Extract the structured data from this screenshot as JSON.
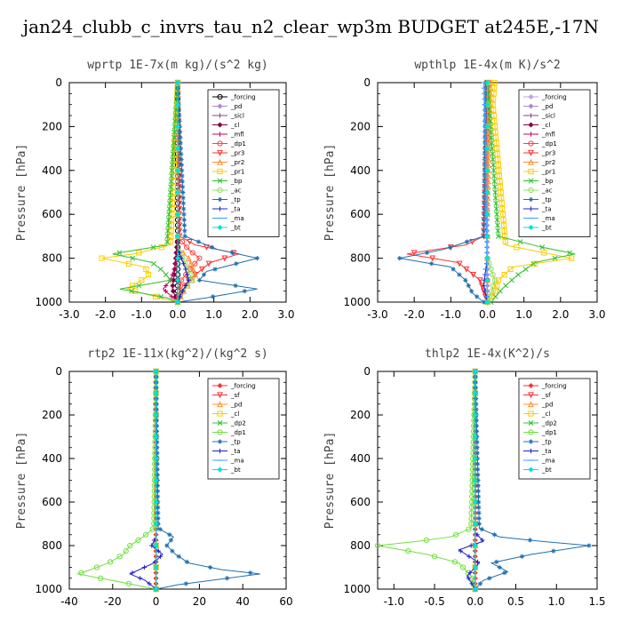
{
  "figure": {
    "title": "jan24_clubb_c_invrs_tau_n2_clear_wp3m  BUDGET at245E,-17N"
  },
  "chart_data": [
    {
      "type": "line",
      "title": "wprtp  1E-7x(m kg)/(s^2 kg)",
      "ylabel": "Pressure [hPa]",
      "xlim": [
        -3.0,
        3.0
      ],
      "ylim": [
        1000,
        0
      ],
      "xticks": [
        "-3.0",
        "-2.0",
        "-1.0",
        "0.0",
        "1.0",
        "2.0",
        "3.0"
      ],
      "yticks": [
        "0",
        "200",
        "400",
        "600",
        "800",
        "1000"
      ],
      "legend_position": "top-right",
      "series": [
        {
          "name": "_forcing",
          "color": "#000000",
          "marker": "circle",
          "x": [
            0,
            0,
            0
          ],
          "y": [
            0,
            500,
            1000
          ]
        },
        {
          "name": "_pd",
          "color": "#b088d0",
          "marker": "diamond",
          "x": [
            0,
            0,
            0
          ],
          "y": [
            0,
            500,
            1000
          ]
        },
        {
          "name": "_sicl",
          "color": "#8040a0",
          "marker": "plus",
          "x": [
            0,
            0,
            0
          ],
          "y": [
            0,
            500,
            1000
          ]
        },
        {
          "name": "_cl",
          "color": "#800040",
          "marker": "diamond",
          "x": [
            0,
            0,
            -0.1,
            -0.15,
            0
          ],
          "y": [
            0,
            700,
            880,
            940,
            1000
          ]
        },
        {
          "name": "_mfl",
          "color": "#c00060",
          "marker": "plus",
          "x": [
            0,
            0,
            -0.2,
            -0.4,
            0
          ],
          "y": [
            0,
            800,
            900,
            940,
            1000
          ]
        },
        {
          "name": "_dp1",
          "color": "#ff4040",
          "marker": "circle",
          "x": [
            0,
            0,
            0.3,
            0.6,
            0.1,
            0
          ],
          "y": [
            0,
            700,
            760,
            800,
            900,
            1000
          ]
        },
        {
          "name": "_pr3",
          "color": "#ff3030",
          "marker": "triangle-down",
          "x": [
            0,
            0.05,
            0.5,
            1.7,
            0.9,
            0.3,
            0
          ],
          "y": [
            0,
            700,
            740,
            780,
            820,
            900,
            1000
          ]
        },
        {
          "name": "_pr2",
          "color": "#ff9030",
          "marker": "triangle",
          "x": [
            0,
            0,
            0.3,
            0.5,
            0.2,
            0
          ],
          "y": [
            0,
            750,
            800,
            880,
            940,
            1000
          ]
        },
        {
          "name": "_pr1",
          "color": "#ffcc00",
          "marker": "square",
          "x": [
            0,
            -0.2,
            -1.2,
            -2.1,
            -0.9,
            -0.8,
            -1.4,
            -0.5,
            0
          ],
          "y": [
            0,
            740,
            780,
            800,
            840,
            880,
            940,
            980,
            1000
          ]
        },
        {
          "name": "_bp",
          "color": "#30c030",
          "marker": "cross",
          "x": [
            0,
            -0.3,
            -1.8,
            -0.7,
            -0.4,
            -0.2,
            -1.6,
            -0.3,
            0
          ],
          "y": [
            0,
            740,
            780,
            820,
            860,
            900,
            940,
            980,
            1000
          ]
        },
        {
          "name": "_ac",
          "color": "#90e060",
          "marker": "circle",
          "x": [
            0,
            0,
            0.2,
            0.4,
            0.1,
            0
          ],
          "y": [
            0,
            760,
            820,
            900,
            960,
            1000
          ]
        },
        {
          "name": "_tp",
          "color": "#2070b0",
          "marker": "star",
          "x": [
            0,
            0.2,
            1.1,
            2.2,
            0.8,
            0.6,
            2.2,
            0.8,
            0
          ],
          "y": [
            0,
            700,
            760,
            800,
            860,
            900,
            940,
            980,
            1000
          ]
        },
        {
          "name": "_ta",
          "color": "#2020c0",
          "marker": "plus",
          "x": [
            0,
            0,
            0.2,
            0.3,
            0.1,
            0
          ],
          "y": [
            0,
            760,
            840,
            900,
            960,
            1000
          ]
        },
        {
          "name": "_ma",
          "color": "#40a0ff",
          "marker": "dash",
          "x": [
            0,
            0,
            0
          ],
          "y": [
            0,
            500,
            1000
          ]
        },
        {
          "name": "_bt",
          "color": "#00e0e0",
          "marker": "diamond",
          "x": [
            0,
            0,
            0
          ],
          "y": [
            0,
            500,
            1000
          ]
        }
      ]
    },
    {
      "type": "line",
      "title": "wpthlp  1E-4x(m K)/s^2",
      "ylabel": "Pressure [hPa]",
      "xlim": [
        -3.0,
        3.0
      ],
      "ylim": [
        1000,
        0
      ],
      "xticks": [
        "-3.0",
        "-2.0",
        "-1.0",
        "0.0",
        "1.0",
        "2.0",
        "3.0"
      ],
      "yticks": [
        "0",
        "200",
        "400",
        "600",
        "800",
        "1000"
      ],
      "legend_position": "top-right",
      "series": [
        {
          "name": "_forcing",
          "color": "#c0a0e0",
          "marker": "diamond",
          "x": [
            0,
            0,
            0
          ],
          "y": [
            0,
            500,
            1000
          ]
        },
        {
          "name": "_pd",
          "color": "#b088d0",
          "marker": "diamond",
          "x": [
            0,
            0,
            0
          ],
          "y": [
            0,
            500,
            1000
          ]
        },
        {
          "name": "_sicl",
          "color": "#8040a0",
          "marker": "plus",
          "x": [
            0,
            0,
            0
          ],
          "y": [
            0,
            500,
            1000
          ]
        },
        {
          "name": "_cl",
          "color": "#800040",
          "marker": "diamond",
          "x": [
            0,
            0,
            0
          ],
          "y": [
            0,
            500,
            1000
          ]
        },
        {
          "name": "_mfl",
          "color": "#c00060",
          "marker": "plus",
          "x": [
            0,
            0,
            0
          ],
          "y": [
            0,
            500,
            1000
          ]
        },
        {
          "name": "_dp1",
          "color": "#ff4040",
          "marker": "circle",
          "x": [
            0,
            0,
            0
          ],
          "y": [
            0,
            500,
            1000
          ]
        },
        {
          "name": "_pr3",
          "color": "#ff3030",
          "marker": "triangle-down",
          "x": [
            0,
            -0.1,
            -0.6,
            -2.2,
            -0.8,
            -0.2,
            0
          ],
          "y": [
            0,
            700,
            740,
            780,
            820,
            900,
            1000
          ]
        },
        {
          "name": "_pr2",
          "color": "#ff9030",
          "marker": "triangle",
          "x": [
            0.1,
            0.05,
            0,
            0
          ],
          "y": [
            0,
            200,
            600,
            1000
          ]
        },
        {
          "name": "_pr1",
          "color": "#ffcc00",
          "marker": "square",
          "x": [
            0.2,
            0.15,
            0.5,
            2.3,
            0.7,
            0.3,
            0.2,
            0
          ],
          "y": [
            0,
            100,
            740,
            800,
            840,
            900,
            960,
            1000
          ]
        },
        {
          "name": "_bp",
          "color": "#30c030",
          "marker": "cross",
          "x": [
            0,
            0.3,
            1.5,
            2.4,
            1.3,
            0.8,
            0.4,
            0.1
          ],
          "y": [
            0,
            700,
            750,
            780,
            820,
            880,
            940,
            1000
          ]
        },
        {
          "name": "_ac",
          "color": "#90e060",
          "marker": "circle",
          "x": [
            0,
            0,
            0.2,
            0.1,
            0
          ],
          "y": [
            0,
            800,
            900,
            960,
            1000
          ]
        },
        {
          "name": "_tp",
          "color": "#2070b0",
          "marker": "star",
          "x": [
            -0.05,
            -0.1,
            -1.2,
            -2.4,
            -1.0,
            -0.6,
            -0.4,
            -0.1
          ],
          "y": [
            0,
            700,
            760,
            800,
            840,
            900,
            960,
            1000
          ]
        },
        {
          "name": "_ta",
          "color": "#2020c0",
          "marker": "plus",
          "x": [
            0,
            0,
            -0.1,
            0
          ],
          "y": [
            0,
            800,
            920,
            1000
          ]
        },
        {
          "name": "_ma",
          "color": "#40a0ff",
          "marker": "dash",
          "x": [
            -0.1,
            -0.05,
            0
          ],
          "y": [
            0,
            300,
            1000
          ]
        },
        {
          "name": "_bt",
          "color": "#00e0e0",
          "marker": "diamond",
          "x": [
            0,
            0,
            0
          ],
          "y": [
            0,
            500,
            1000
          ]
        }
      ]
    },
    {
      "type": "line",
      "title": "rtp2  1E-11x(kg^2)/(kg^2 s)",
      "ylabel": "Pressure [hPa]",
      "xlim": [
        -40,
        60
      ],
      "ylim": [
        1000,
        0
      ],
      "xticks": [
        "-40",
        "-20",
        "0",
        "20",
        "40",
        "60"
      ],
      "yticks": [
        "0",
        "200",
        "400",
        "600",
        "800",
        "1000"
      ],
      "legend_position": "top-right",
      "series": [
        {
          "name": "_forcing",
          "color": "#ff3030",
          "marker": "diamond",
          "x": [
            0,
            0,
            0
          ],
          "y": [
            0,
            500,
            1000
          ]
        },
        {
          "name": "_sf",
          "color": "#ff3030",
          "marker": "triangle-down",
          "x": [
            0,
            0,
            0
          ],
          "y": [
            0,
            500,
            1000
          ]
        },
        {
          "name": "_pd",
          "color": "#ff9030",
          "marker": "triangle",
          "x": [
            0,
            0,
            0
          ],
          "y": [
            0,
            500,
            1000
          ]
        },
        {
          "name": "_cl",
          "color": "#ffcc00",
          "marker": "square",
          "x": [
            0,
            0,
            0
          ],
          "y": [
            0,
            500,
            1000
          ]
        },
        {
          "name": "_dp2",
          "color": "#30c030",
          "marker": "cross",
          "x": [
            0,
            0,
            0
          ],
          "y": [
            0,
            500,
            1000
          ]
        },
        {
          "name": "_dp1",
          "color": "#70e040",
          "marker": "circle",
          "x": [
            0,
            -1,
            -6,
            -12,
            -15,
            -22,
            -30,
            -36,
            -10,
            0
          ],
          "y": [
            0,
            720,
            760,
            800,
            840,
            880,
            910,
            930,
            980,
            1000
          ]
        },
        {
          "name": "_tp",
          "color": "#2070b0",
          "marker": "star",
          "x": [
            0,
            1,
            8,
            5,
            9,
            15,
            30,
            48,
            10,
            0
          ],
          "y": [
            0,
            720,
            760,
            800,
            840,
            880,
            910,
            930,
            980,
            1000
          ]
        },
        {
          "name": "_ta",
          "color": "#2020c0",
          "marker": "plus",
          "x": [
            0,
            0,
            -2,
            3,
            -1,
            -12,
            -5,
            0
          ],
          "y": [
            0,
            760,
            800,
            840,
            880,
            930,
            960,
            1000
          ]
        },
        {
          "name": "_ma",
          "color": "#40a0ff",
          "marker": "dash",
          "x": [
            0,
            0,
            0
          ],
          "y": [
            0,
            500,
            1000
          ]
        },
        {
          "name": "_bt",
          "color": "#00e0e0",
          "marker": "diamond",
          "x": [
            0,
            0,
            0
          ],
          "y": [
            0,
            500,
            1000
          ]
        }
      ]
    },
    {
      "type": "line",
      "title": "thlp2  1E-4x(K^2)/s",
      "ylabel": "Pressure [hPa]",
      "xlim": [
        -1.2,
        1.5
      ],
      "ylim": [
        1000,
        0
      ],
      "xticks": [
        "-1.0",
        "-0.5",
        "0.0",
        "0.5",
        "1.0",
        "1.5"
      ],
      "yticks": [
        "0",
        "200",
        "400",
        "600",
        "800",
        "1000"
      ],
      "legend_position": "top-right",
      "series": [
        {
          "name": "_forcing",
          "color": "#ff3030",
          "marker": "diamond",
          "x": [
            0,
            0,
            0
          ],
          "y": [
            0,
            500,
            1000
          ]
        },
        {
          "name": "_sf",
          "color": "#ff3030",
          "marker": "triangle-down",
          "x": [
            0,
            0,
            0
          ],
          "y": [
            0,
            500,
            1000
          ]
        },
        {
          "name": "_pd",
          "color": "#ff9030",
          "marker": "triangle",
          "x": [
            0,
            0,
            0
          ],
          "y": [
            0,
            500,
            1000
          ]
        },
        {
          "name": "_cl",
          "color": "#ffcc00",
          "marker": "square",
          "x": [
            0,
            0,
            0
          ],
          "y": [
            0,
            500,
            1000
          ]
        },
        {
          "name": "_dp2",
          "color": "#30c030",
          "marker": "cross",
          "x": [
            0,
            0,
            0
          ],
          "y": [
            0,
            500,
            1000
          ]
        },
        {
          "name": "_dp1",
          "color": "#70e040",
          "marker": "circle",
          "x": [
            0,
            -0.05,
            -0.3,
            -0.7,
            -1.2,
            -0.6,
            -0.2,
            -0.05,
            0
          ],
          "y": [
            0,
            720,
            760,
            780,
            800,
            840,
            880,
            940,
            1000
          ]
        },
        {
          "name": "_tp",
          "color": "#2070b0",
          "marker": "star",
          "x": [
            0,
            0.05,
            0.3,
            0.8,
            1.4,
            0.7,
            0.2,
            0.4,
            0.1,
            0
          ],
          "y": [
            0,
            720,
            760,
            780,
            800,
            840,
            880,
            920,
            960,
            1000
          ]
        },
        {
          "name": "_ta",
          "color": "#2020c0",
          "marker": "plus",
          "x": [
            0,
            0,
            0.1,
            -0.2,
            0.05,
            -0.1,
            0
          ],
          "y": [
            0,
            740,
            780,
            820,
            880,
            940,
            1000
          ]
        },
        {
          "name": "_ma",
          "color": "#40a0ff",
          "marker": "dash",
          "x": [
            0,
            0,
            0
          ],
          "y": [
            0,
            500,
            1000
          ]
        },
        {
          "name": "_bt",
          "color": "#00e0e0",
          "marker": "diamond",
          "x": [
            0,
            0,
            0
          ],
          "y": [
            0,
            500,
            1000
          ]
        }
      ]
    }
  ]
}
